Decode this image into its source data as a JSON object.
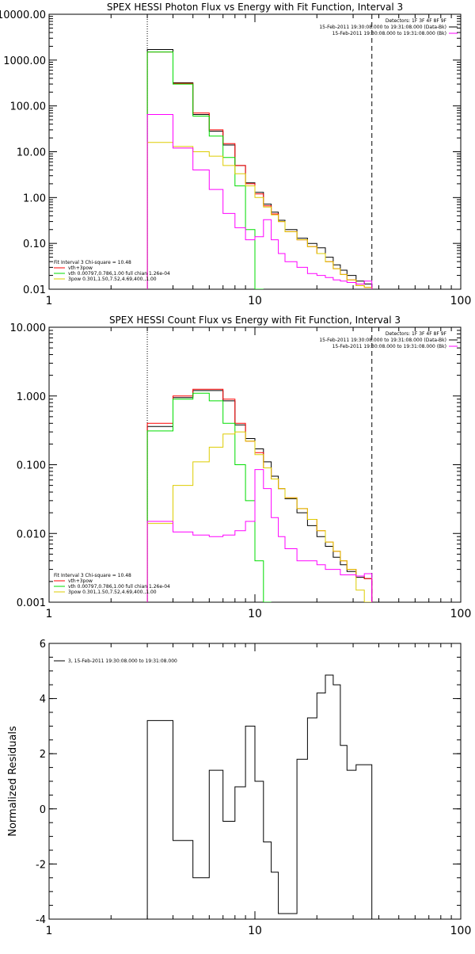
{
  "chart_data": [
    {
      "type": "line",
      "title": "SPEX HESSI Photon Flux vs Energy with Fit Function, Interval 3",
      "log_x": true,
      "log_y": true,
      "xlim": [
        1,
        100
      ],
      "ylim": [
        0.01,
        10000
      ],
      "x_ticks": [
        1,
        10,
        100
      ],
      "x_tick_labels": [
        "1",
        "10",
        "100"
      ],
      "y_ticks": [
        0.01,
        0.1,
        1,
        10,
        100,
        1000,
        10000
      ],
      "y_tick_labels": [
        "0.01",
        "0.10",
        "1.00",
        "10.00",
        "100.00",
        "1000.00",
        "10000.00"
      ],
      "vlines": [
        {
          "x": 3,
          "style": "dotted"
        },
        {
          "x": 37,
          "style": "dashed"
        }
      ],
      "header_lines": [
        "Detectors: 1F 3F 4F 8F 9F",
        "15-Feb-2011 19:30:08.000 to 19:31:08.000 (Data-Bk)",
        "15-Feb-2011 19:30:08.000 to 19:31:08.000 (Bk)"
      ],
      "header_colors": [
        "none",
        "#000000",
        "#ff00ff"
      ],
      "legend": {
        "heading": "Fit Interval 3   Chi-square = 10.48",
        "entries": [
          {
            "label": "vth+3pow",
            "color": "#ff0000"
          },
          {
            "label": "vth 0.00797,0.786,1.00  full chian 1.26e-04",
            "color": "#00dd00"
          },
          {
            "label": "3pow 0.301,1.50,7.52,4.69,400.,1.00",
            "color": "#ddcc00"
          }
        ]
      },
      "edges": [
        3,
        4,
        5,
        6,
        7,
        8,
        9,
        10,
        11,
        12,
        13,
        14,
        16,
        18,
        20,
        22,
        24,
        26,
        28,
        31,
        34,
        37
      ],
      "series": [
        {
          "color": "#000000",
          "values": [
            1700,
            320,
            65,
            28,
            14,
            5,
            2.1,
            1.3,
            0.72,
            0.48,
            0.32,
            0.2,
            0.13,
            0.1,
            0.08,
            0.05,
            0.034,
            0.026,
            0.02,
            0.015,
            0.013
          ]
        },
        {
          "color": "#ff0000",
          "values": [
            1500,
            310,
            70,
            30,
            15,
            5,
            2.0,
            1.2,
            0.66,
            0.44,
            0.3,
            0.18,
            0.12,
            0.085,
            0.06,
            0.04,
            0.028,
            0.021,
            0.016,
            0.012,
            0.011
          ]
        },
        {
          "color": "#00dd00",
          "values": [
            1500,
            300,
            60,
            22,
            7.5,
            1.8,
            0.2,
            0.01
          ]
        },
        {
          "color": "#ddcc00",
          "values": [
            16,
            13,
            10,
            8,
            5,
            3.3,
            1.8,
            1.0,
            0.62,
            0.42,
            0.3,
            0.18,
            0.12,
            0.085,
            0.06,
            0.04,
            0.028,
            0.021,
            0.016,
            0.012,
            0.011
          ]
        },
        {
          "color": "#ff00ff",
          "values": [
            65,
            12,
            4,
            1.5,
            0.45,
            0.22,
            0.12,
            0.14,
            0.33,
            0.12,
            0.06,
            0.04,
            0.03,
            0.022,
            0.02,
            0.018,
            0.016,
            0.015,
            0.014,
            0.013,
            0.015
          ]
        }
      ]
    },
    {
      "type": "line",
      "title": "SPEX HESSI Count Flux vs Energy with Fit Function, Interval 3",
      "log_x": true,
      "log_y": true,
      "xlim": [
        1,
        100
      ],
      "ylim": [
        0.001,
        10
      ],
      "x_ticks": [
        1,
        10,
        100
      ],
      "x_tick_labels": [
        "1",
        "10",
        "100"
      ],
      "y_ticks": [
        0.001,
        0.01,
        0.1,
        1,
        10
      ],
      "y_tick_labels": [
        "0.001",
        "0.010",
        "0.100",
        "1.000",
        "10.000"
      ],
      "vlines": [
        {
          "x": 3,
          "style": "dotted"
        },
        {
          "x": 37,
          "style": "dashed"
        }
      ],
      "header_lines": [
        "Detectors: 1F 3F 4F 8F 9F",
        "15-Feb-2011 19:30:08.000 to 19:31:08.000 (Data-Bk)",
        "15-Feb-2011 19:30:08.000 to 19:31:08.000 (Bk)"
      ],
      "header_colors": [
        "none",
        "#000000",
        "#ff00ff"
      ],
      "legend": {
        "heading": "Fit Interval 3   Chi-square = 10.48",
        "entries": [
          {
            "label": "vth+3pow",
            "color": "#ff0000"
          },
          {
            "label": "vth 0.00797,0.786,1.00  full chian 1.26e-04",
            "color": "#00dd00"
          },
          {
            "label": "3pow 0.301,1.50,7.52,4.69,400.,1.00",
            "color": "#ddcc00"
          }
        ]
      },
      "edges": [
        3,
        4,
        5,
        6,
        7,
        8,
        9,
        10,
        11,
        12,
        13,
        14,
        16,
        18,
        20,
        22,
        24,
        26,
        28,
        31,
        34,
        37
      ],
      "series": [
        {
          "color": "#000000",
          "values": [
            0.36,
            0.95,
            1.2,
            1.2,
            0.85,
            0.38,
            0.24,
            0.17,
            0.11,
            0.068,
            0.045,
            0.032,
            0.02,
            0.013,
            0.009,
            0.0065,
            0.0045,
            0.0035,
            0.0028,
            0.0023,
            0.0022
          ]
        },
        {
          "color": "#ff0000",
          "values": [
            0.4,
            1.0,
            1.25,
            1.25,
            0.9,
            0.4,
            0.22,
            0.15,
            0.09,
            0.062,
            0.045,
            0.033,
            0.023,
            0.016,
            0.011,
            0.0075,
            0.0055,
            0.004,
            0.003,
            0.0024,
            0.0022
          ]
        },
        {
          "color": "#00dd00",
          "values": [
            0.31,
            0.9,
            1.1,
            0.85,
            0.4,
            0.1,
            0.03,
            0.004,
            0.001
          ]
        },
        {
          "color": "#ddcc00",
          "values": [
            0.014,
            0.05,
            0.11,
            0.18,
            0.28,
            0.3,
            0.22,
            0.14,
            0.09,
            0.062,
            0.045,
            0.033,
            0.023,
            0.016,
            0.011,
            0.0075,
            0.0055,
            0.004,
            0.003,
            0.0015,
            0.001
          ]
        },
        {
          "color": "#ff00ff",
          "values": [
            0.015,
            0.0105,
            0.0095,
            0.009,
            0.0095,
            0.011,
            0.015,
            0.085,
            0.045,
            0.017,
            0.009,
            0.006,
            0.004,
            0.004,
            0.0035,
            0.003,
            0.003,
            0.0025,
            0.0025,
            0.0024,
            0.0026
          ]
        }
      ]
    },
    {
      "type": "line",
      "title": "",
      "ylabel": "Normalized Residuals",
      "log_x": true,
      "log_y": false,
      "xlim": [
        1,
        100
      ],
      "ylim": [
        -4,
        6
      ],
      "x_ticks": [
        1,
        10,
        100
      ],
      "x_tick_labels": [
        "1",
        "10",
        "100"
      ],
      "y_ticks": [
        -4,
        -2,
        0,
        2,
        4,
        6
      ],
      "y_tick_labels": [
        "-4",
        "-2",
        "0",
        "2",
        "4",
        "6"
      ],
      "legend": {
        "heading": "",
        "entries": [
          {
            "label": "3, 15-Feb-2011 19:30:08.000 to 19:31:08.000",
            "color": "#000000"
          }
        ]
      },
      "edges": [
        3,
        4,
        5,
        6,
        7,
        8,
        9,
        10,
        11,
        12,
        13,
        14,
        16,
        18,
        20,
        22,
        24,
        26,
        28,
        31,
        34,
        37
      ],
      "series": [
        {
          "color": "#000000",
          "values": [
            3.2,
            -1.15,
            -2.5,
            1.4,
            -0.45,
            0.8,
            3.0,
            1.0,
            -1.2,
            -2.3,
            -3.8,
            -3.8,
            1.8,
            3.3,
            4.2,
            4.85,
            4.5,
            2.3,
            1.4,
            1.6,
            1.6
          ]
        }
      ]
    }
  ]
}
